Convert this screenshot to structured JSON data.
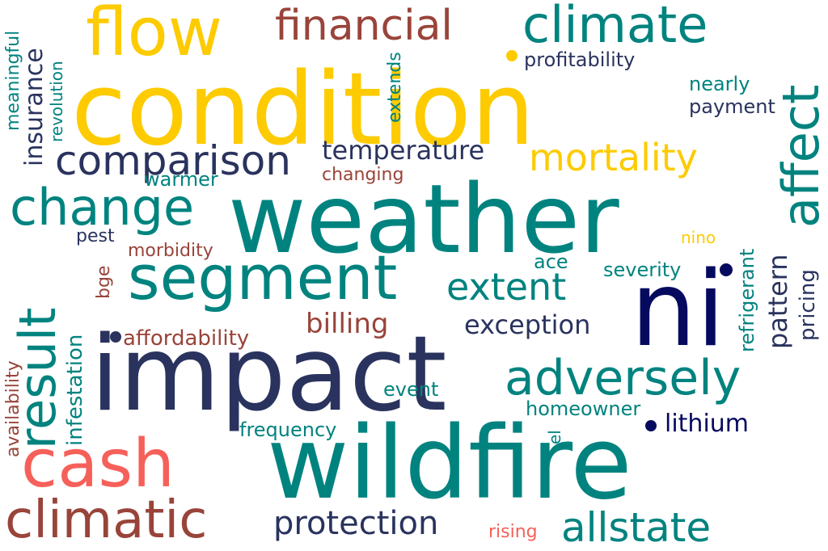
{
  "colors": {
    "teal": "#00837F",
    "gold": "#FDCB00",
    "navy": "#2A335E",
    "brown": "#99443A",
    "coral": "#F6605A",
    "darknavy": "#060A5E"
  },
  "words": {
    "condition": "condition",
    "weather": "weather",
    "wildfire": "wildfire",
    "impact": "impact",
    "ni": "ni",
    "flow": "flow",
    "segment": "segment",
    "cash": "cash",
    "climate": "climate",
    "financial": "financial",
    "comparison": "comparison",
    "change": "change",
    "mortality": "mortality",
    "adversely": "adversely",
    "climatic": "climatic",
    "allstate": "allstate",
    "protection": "protection",
    "extent": "extent",
    "result": "result",
    "affect": "affect",
    "exception": "exception",
    "billing": "billing",
    "temperature": "temperature",
    "lithium": "lithium",
    "affordability": "affordability",
    "frequency": "frequency",
    "homeowner": "homeowner",
    "event": "event",
    "severity": "severity",
    "ace": "ace",
    "nino": "nino",
    "pattern": "pattern",
    "pricing": "pricing",
    "refrigerant": "refrigerant",
    "insurance": "insurance",
    "infestation": "infestation",
    "availability": "availability",
    "meaningful": "meaningful",
    "revolution": "revolution",
    "extends": "extends",
    "profitability": "profitability",
    "nearly": "nearly",
    "payment": "payment",
    "warmer": "warmer",
    "changing": "changing",
    "pest": "pest",
    "morbidity": "morbidity",
    "bge": "bge",
    "rising": "rising",
    "el": "el"
  }
}
